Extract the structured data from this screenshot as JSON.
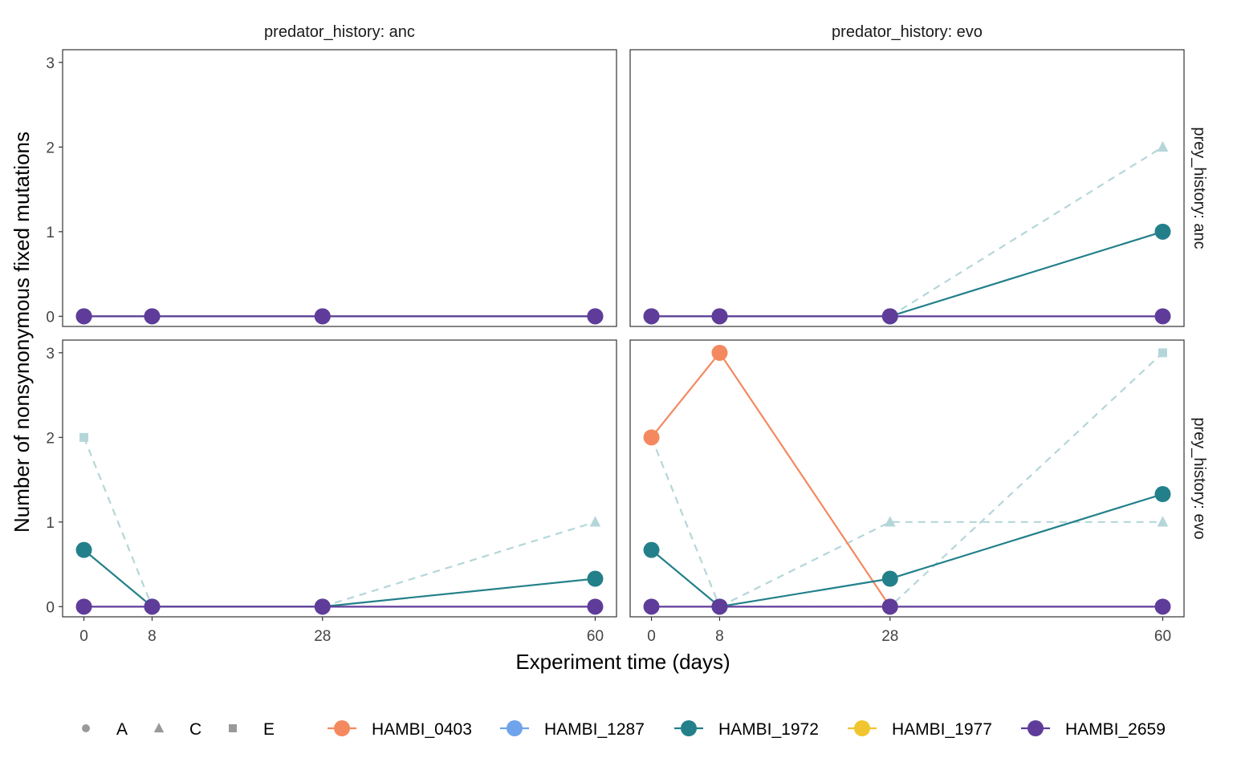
{
  "chart_data": {
    "type": "line",
    "xlabel": "Experiment time (days)",
    "ylabel": "Number of nonsynonymous fixed mutations",
    "x_ticks": [
      0,
      8,
      28,
      60
    ],
    "y_ticks": [
      0,
      1,
      2,
      3
    ],
    "xlim": [
      -2.5,
      62.5
    ],
    "ylim": [
      -0.12,
      3.15
    ],
    "grid": false,
    "legend_position": "bottom",
    "col_facet_labels": [
      "predator_history: anc",
      "predator_history: evo"
    ],
    "row_facet_labels": [
      "prey_history: anc",
      "prey_history: evo"
    ],
    "shape_legend": [
      {
        "label": "A",
        "shape": "circle"
      },
      {
        "label": "C",
        "shape": "triangle"
      },
      {
        "label": "E",
        "shape": "square"
      }
    ],
    "color_legend": [
      {
        "label": "HAMBI_0403",
        "color": "#F4895F"
      },
      {
        "label": "HAMBI_1287",
        "color": "#6FA3EB"
      },
      {
        "label": "HAMBI_1972",
        "color": "#23808A"
      },
      {
        "label": "HAMBI_1977",
        "color": "#F0C52F"
      },
      {
        "label": "HAMBI_2659",
        "color": "#5F3C99"
      }
    ],
    "replicate_color": "#B5D6D9",
    "panels": [
      {
        "row": 0,
        "col": 0,
        "replicates": [],
        "series": [
          {
            "name": "HAMBI_1972",
            "color": "#23808A",
            "x": [
              0,
              8,
              28,
              60
            ],
            "y": [
              0,
              0,
              0,
              0
            ]
          },
          {
            "name": "HAMBI_2659",
            "color": "#5F3C99",
            "x": [
              0,
              8,
              28,
              60
            ],
            "y": [
              0,
              0,
              0,
              0
            ]
          }
        ]
      },
      {
        "row": 0,
        "col": 1,
        "replicates": [
          {
            "shape": "triangle",
            "x": [
              28,
              60
            ],
            "y": [
              0,
              2
            ]
          }
        ],
        "series": [
          {
            "name": "HAMBI_1972",
            "color": "#23808A",
            "x": [
              0,
              8,
              28,
              60
            ],
            "y": [
              0,
              0,
              0,
              1
            ]
          },
          {
            "name": "HAMBI_2659",
            "color": "#5F3C99",
            "x": [
              0,
              8,
              28,
              60
            ],
            "y": [
              0,
              0,
              0,
              0
            ]
          }
        ]
      },
      {
        "row": 1,
        "col": 0,
        "replicates": [
          {
            "shape": "square",
            "x": [
              0,
              8
            ],
            "y": [
              2,
              0
            ]
          },
          {
            "shape": "triangle",
            "x": [
              28,
              60
            ],
            "y": [
              0,
              1
            ]
          }
        ],
        "series": [
          {
            "name": "HAMBI_1972",
            "color": "#23808A",
            "x": [
              0,
              8,
              28,
              60
            ],
            "y": [
              0.67,
              0,
              0,
              0.33
            ]
          },
          {
            "name": "HAMBI_2659",
            "color": "#5F3C99",
            "x": [
              0,
              8,
              28,
              60
            ],
            "y": [
              0,
              0,
              0,
              0
            ]
          }
        ]
      },
      {
        "row": 1,
        "col": 1,
        "replicates": [
          {
            "shape": "square",
            "x": [
              0,
              8,
              28,
              60
            ],
            "y": [
              2,
              0,
              0,
              3
            ]
          },
          {
            "shape": "triangle",
            "x": [
              8,
              28,
              60
            ],
            "y": [
              0,
              1,
              1
            ]
          }
        ],
        "series": [
          {
            "name": "HAMBI_0403",
            "color": "#F4895F",
            "x": [
              0,
              8,
              28
            ],
            "y": [
              2,
              3,
              0
            ]
          },
          {
            "name": "HAMBI_1972",
            "color": "#23808A",
            "x": [
              0,
              8,
              28,
              60
            ],
            "y": [
              0.67,
              0,
              0.33,
              1.33
            ]
          },
          {
            "name": "HAMBI_2659",
            "color": "#5F3C99",
            "x": [
              0,
              8,
              28,
              60
            ],
            "y": [
              0,
              0,
              0,
              0
            ]
          }
        ]
      }
    ]
  }
}
